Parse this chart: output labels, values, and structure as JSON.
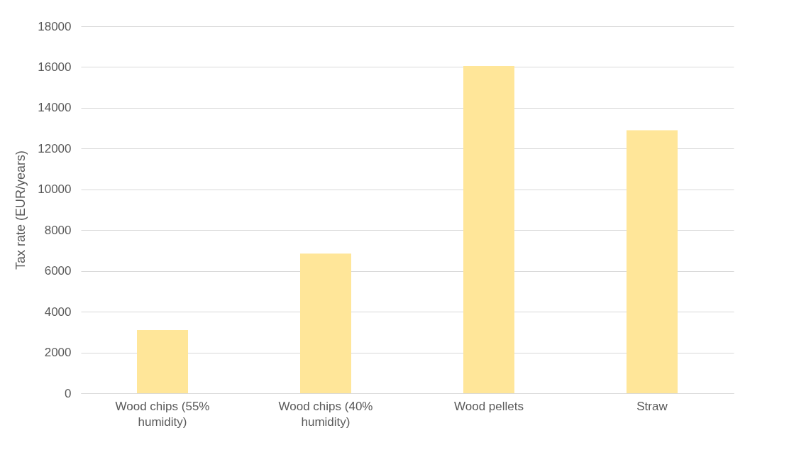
{
  "chart_data": {
    "type": "bar",
    "ylabel": "Tax rate (EUR/years)",
    "categories": [
      "Wood chips (55% humidity)",
      "Wood chips (40% humidity)",
      "Wood pellets",
      "Straw"
    ],
    "values": [
      3100,
      6850,
      16050,
      12900
    ],
    "color": "#ffe699",
    "ylim": [
      0,
      18000
    ],
    "yticks": [
      0,
      2000,
      4000,
      6000,
      8000,
      10000,
      12000,
      14000,
      16000,
      18000
    ],
    "grid": "y"
  }
}
